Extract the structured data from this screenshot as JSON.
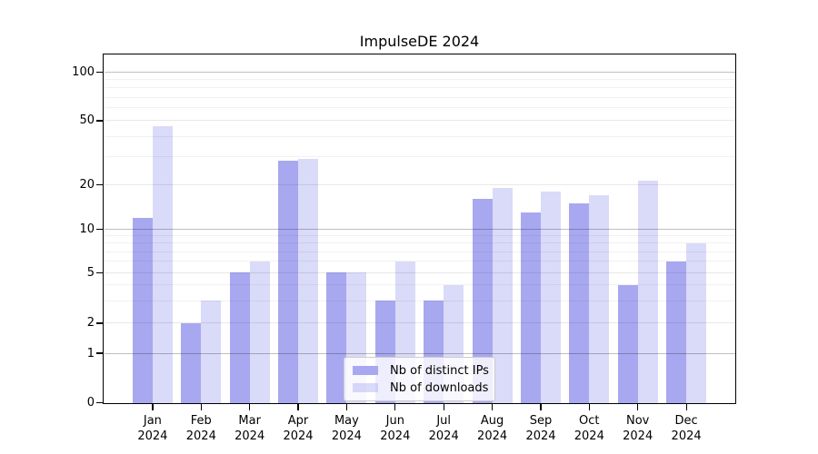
{
  "chart_data": {
    "type": "bar",
    "title": "ImpulseDE 2024",
    "categories": [
      "Jan",
      "Feb",
      "Mar",
      "Apr",
      "May",
      "Jun",
      "Jul",
      "Aug",
      "Sep",
      "Oct",
      "Nov",
      "Dec"
    ],
    "year_suffix": "2024",
    "series": [
      {
        "name": "Nb of distinct IPs",
        "values": [
          12,
          2,
          5,
          28,
          5,
          3,
          3,
          16,
          13,
          15,
          4,
          6
        ]
      },
      {
        "name": "Nb of downloads",
        "values": [
          46,
          3,
          6,
          29,
          5,
          6,
          4,
          19,
          18,
          17,
          21,
          8
        ]
      }
    ],
    "yaxis": {
      "ticks": [
        0,
        1,
        2,
        5,
        10,
        20,
        50,
        100
      ],
      "scale": "log-like",
      "grid": true
    },
    "legend": {
      "position": "bottom-center"
    },
    "colors": {
      "ips": "#a8a8f0",
      "downloads": "#d9d9f8",
      "downloads_rgba": "rgba(168,168,240,0.42)",
      "grid_major": "rgba(0,0,0,0.25)",
      "grid_mid": "rgba(0,0,0,0.09)",
      "grid_minor": "rgba(0,0,0,0.055)"
    }
  }
}
